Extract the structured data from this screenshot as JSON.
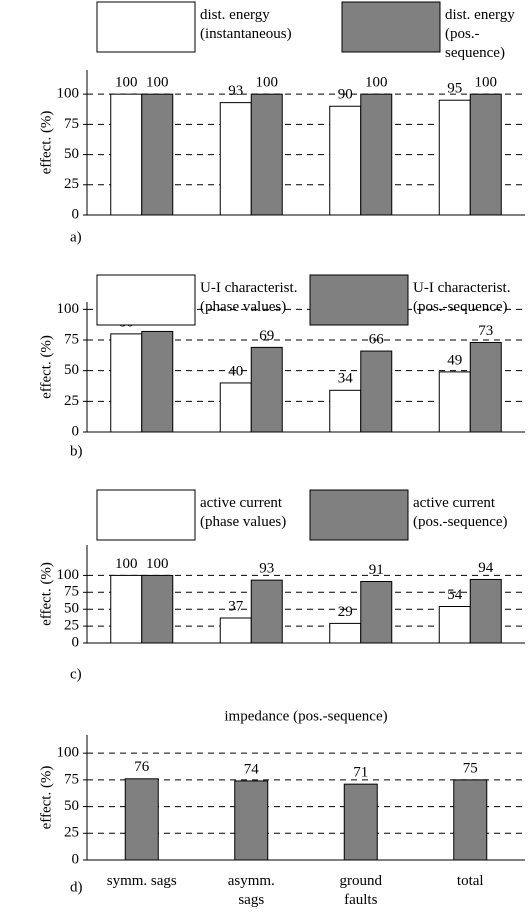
{
  "chart_data": [
    {
      "type": "bar",
      "panel_label": "a)",
      "y_label": "effect. (%)",
      "ylim": [
        0,
        120
      ],
      "yticks": [
        0,
        25,
        50,
        75,
        100
      ],
      "grid": true,
      "series": [
        {
          "name": "dist. energy\n(instantaneous)",
          "color": "#ffffff",
          "values": [
            100,
            93,
            90,
            95
          ]
        },
        {
          "name": "dist. energy\n(pos.-sequence)",
          "color": "#808080",
          "values": [
            100,
            100,
            100,
            100
          ]
        }
      ]
    },
    {
      "type": "bar",
      "panel_label": "b)",
      "y_label": "effect. (%)",
      "ylim": [
        0,
        106
      ],
      "yticks": [
        0,
        25,
        50,
        75,
        100
      ],
      "grid": true,
      "series": [
        {
          "name": "U-I characterist.\n(phase values)",
          "color": "#ffffff",
          "values": [
            80,
            40,
            34,
            49
          ]
        },
        {
          "name": "U-I characterist.\n(pos.-sequence)",
          "color": "#808080",
          "values": [
            82,
            69,
            66,
            73
          ]
        }
      ]
    },
    {
      "type": "bar",
      "panel_label": "c)",
      "y_label": "effect. (%)",
      "ylim": [
        0,
        145
      ],
      "yticks": [
        0,
        25,
        50,
        75,
        100
      ],
      "grid": true,
      "series": [
        {
          "name": "active current\n(phase values)",
          "color": "#ffffff",
          "values": [
            100,
            37,
            29,
            54
          ]
        },
        {
          "name": "active current\n(pos.-sequence)",
          "color": "#808080",
          "values": [
            100,
            93,
            91,
            94
          ]
        }
      ]
    },
    {
      "type": "bar",
      "panel_label": "d)",
      "title": "impedance (pos.-sequence)",
      "y_label": "effect. (%)",
      "ylim": [
        0,
        117
      ],
      "yticks": [
        0,
        25,
        50,
        75,
        100
      ],
      "grid": true,
      "categories": [
        "symm. sags",
        "asymm. sags",
        "ground faults",
        "total"
      ],
      "series": [
        {
          "name": "impedance (pos.-sequence)",
          "color": "#808080",
          "values": [
            76,
            74,
            71,
            75
          ]
        }
      ]
    }
  ]
}
